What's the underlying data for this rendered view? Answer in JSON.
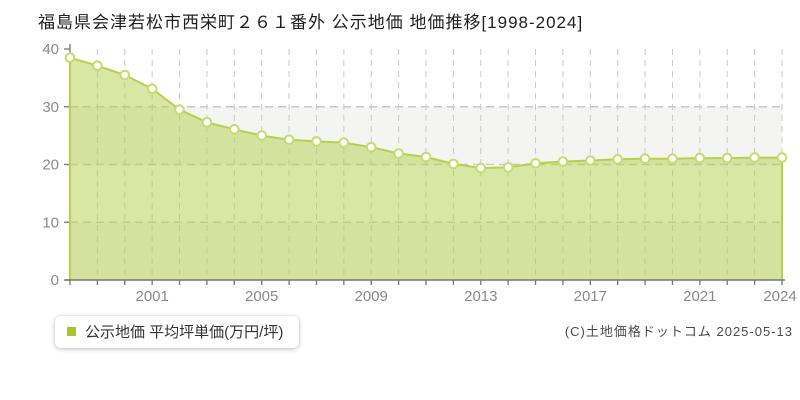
{
  "title": "福島県会津若松市西栄町２６１番外 公示地価 地価推移[1998-2024]",
  "legend": {
    "label": "公示地価 平均坪単価(万円/坪)"
  },
  "copyright": "(C)土地価格ドットコム 2025-05-13",
  "chart_data": {
    "type": "area",
    "title": "福島県会津若松市西栄町２６１番外 公示地価 地価推移[1998-2024]",
    "x": [
      1998,
      1999,
      2000,
      2001,
      2002,
      2003,
      2004,
      2005,
      2006,
      2007,
      2008,
      2009,
      2010,
      2011,
      2012,
      2013,
      2014,
      2015,
      2016,
      2017,
      2018,
      2019,
      2020,
      2021,
      2022,
      2023,
      2024
    ],
    "series": [
      {
        "name": "公示地価 平均坪単価(万円/坪)",
        "values": [
          38.5,
          37.1,
          35.5,
          33.1,
          29.5,
          27.3,
          26.1,
          25.0,
          24.3,
          24.0,
          23.8,
          23.0,
          21.9,
          21.3,
          20.1,
          19.4,
          19.5,
          20.2,
          20.5,
          20.7,
          20.9,
          21.0,
          21.0,
          21.1,
          21.1,
          21.2,
          21.2
        ]
      }
    ],
    "ylim": [
      0,
      40
    ],
    "yticks": [
      0,
      10,
      20,
      30,
      40
    ],
    "xtick_labels": [
      "2001",
      "2005",
      "2009",
      "2013",
      "2017",
      "2021",
      "2024"
    ],
    "grid": true,
    "legend_position": "bottom-left",
    "colors": {
      "line": "#b4d14c",
      "fill": "rgba(179,208,74,0.5)",
      "marker_fill": "#ffffff",
      "marker_stroke": "#c6dc6e",
      "band": "#f4f4f3",
      "grid": "#c9c9c9",
      "axis": "#757575",
      "tick_label": "#8a8a8a"
    }
  }
}
